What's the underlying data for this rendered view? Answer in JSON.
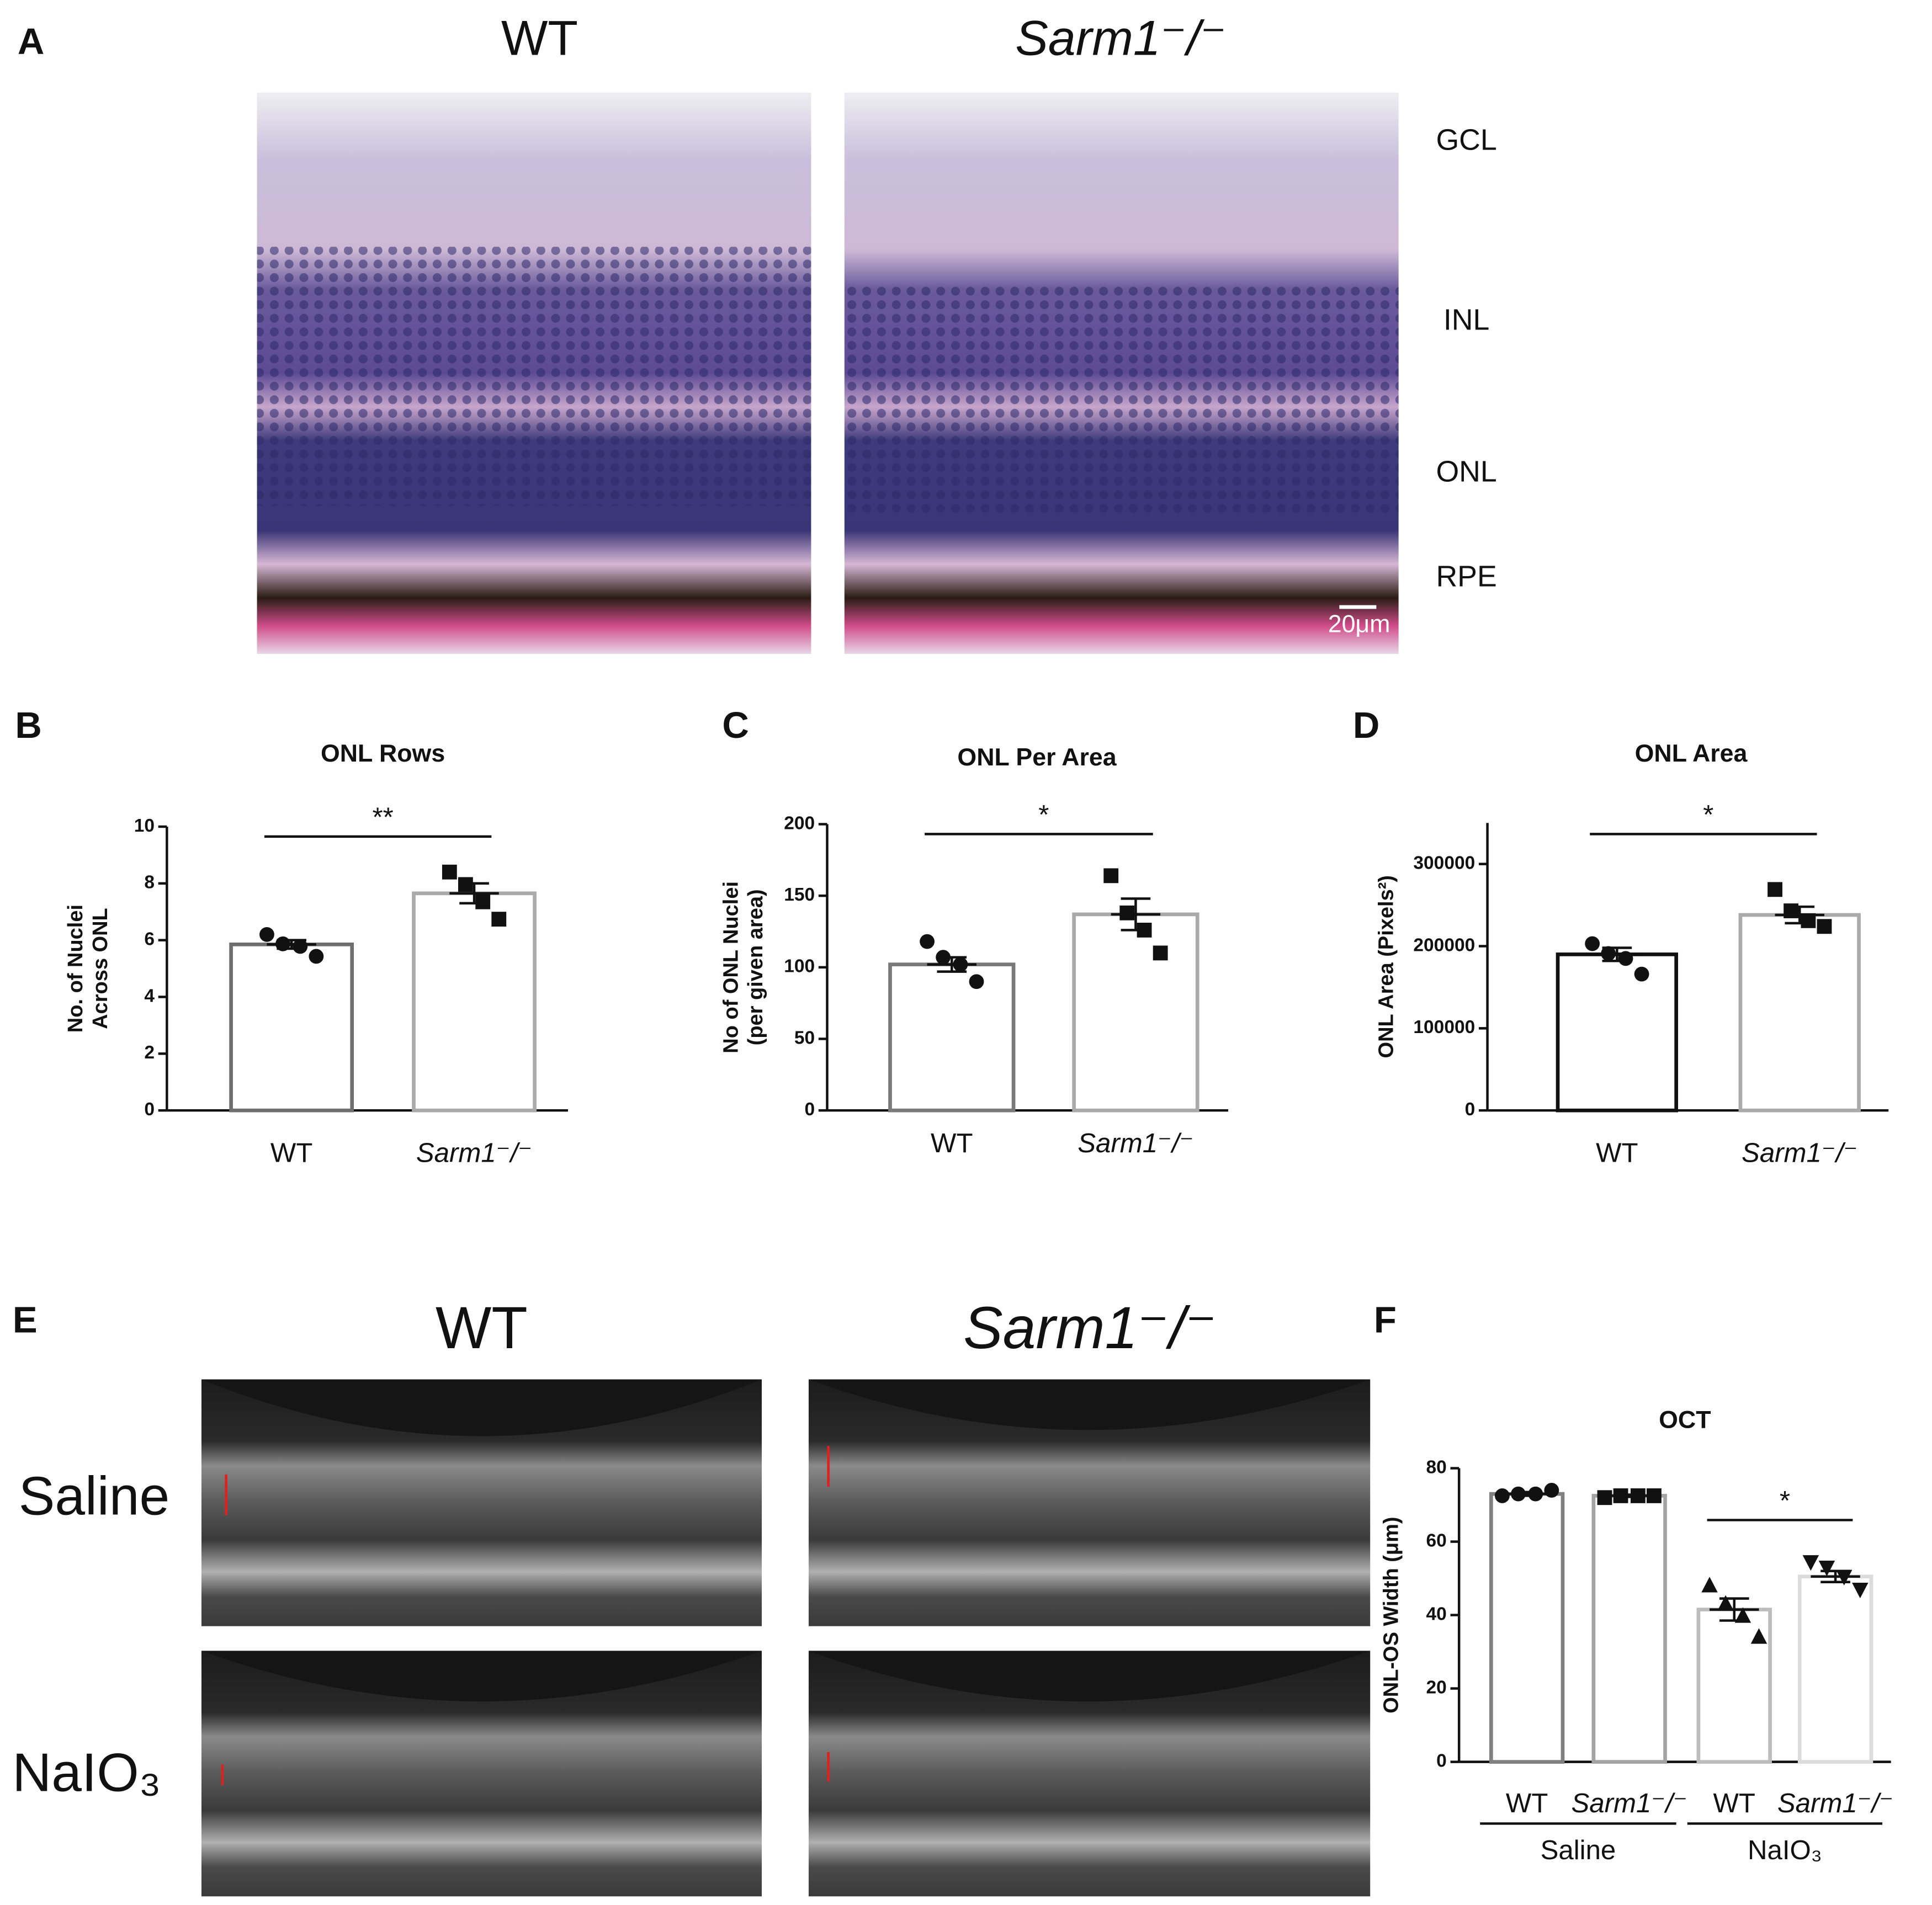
{
  "figure": {
    "panels": [
      "A",
      "B",
      "C",
      "D",
      "E",
      "F"
    ],
    "histology": {
      "columns": [
        "WT",
        "Sarm1⁻/⁻"
      ],
      "layers": [
        "GCL",
        "INL",
        "ONL",
        "RPE"
      ],
      "scale_bar": "20μm"
    },
    "oct": {
      "columns": [
        "WT",
        "Sarm1⁻/⁻"
      ],
      "rows": [
        "Saline",
        "NaIO₃"
      ]
    }
  },
  "chart_data": [
    {
      "type": "bar",
      "title": "ONL Rows",
      "ylabel": [
        "No. of Nuclei",
        "Across ONL"
      ],
      "categories": [
        "WT",
        "Sarm1⁻/⁻"
      ],
      "values": [
        5.85,
        7.65
      ],
      "errors": [
        0.15,
        0.35
      ],
      "points": [
        [
          6.2,
          5.87,
          5.78,
          5.43
        ],
        [
          8.4,
          7.96,
          7.35,
          6.74
        ]
      ],
      "colors": [
        "#6f6f6f",
        "#aaaaaa"
      ],
      "markers": [
        "circle",
        "square"
      ],
      "ylim": [
        0,
        10
      ],
      "yticks": [
        0,
        2,
        4,
        6,
        8,
        10
      ],
      "significance": "**"
    },
    {
      "type": "bar",
      "title": "ONL Per Area",
      "ylabel": [
        "No of ONL Nuclei",
        "(per given area)"
      ],
      "categories": [
        "WT",
        "Sarm1⁻/⁻"
      ],
      "values": [
        102,
        137
      ],
      "errors": [
        5,
        11
      ],
      "points": [
        [
          118,
          107,
          102,
          90
        ],
        [
          164,
          138,
          126,
          110
        ]
      ],
      "colors": [
        "#7a7a7a",
        "#aaaaaa"
      ],
      "markers": [
        "circle",
        "square"
      ],
      "ylim": [
        0,
        200
      ],
      "yticks": [
        0,
        50,
        100,
        150,
        200
      ],
      "significance": "*"
    },
    {
      "type": "bar",
      "title": "ONL Area",
      "ylabel": [
        "ONL Area (Pixels²)"
      ],
      "categories": [
        "WT",
        "Sarm1⁻/⁻"
      ],
      "values": [
        190000,
        238000
      ],
      "errors": [
        8000,
        10000
      ],
      "points": [
        [
          203000,
          191000,
          185000,
          166000
        ],
        [
          269000,
          243000,
          231000,
          224000
        ]
      ],
      "colors": [
        "#111111",
        "#aaaaaa"
      ],
      "markers": [
        "circle",
        "square"
      ],
      "ylim": [
        0,
        350000
      ],
      "yticks": [
        0,
        100000,
        200000,
        300000
      ],
      "significance": "*"
    },
    {
      "type": "bar",
      "title": "OCT",
      "ylabel": [
        "ONL-OS Width (μm)"
      ],
      "categories": [
        "WT",
        "Sarm1⁻/⁻",
        "WT",
        "Sarm1⁻/⁻"
      ],
      "groups": [
        "Saline",
        "NaIO₃"
      ],
      "values": [
        73,
        72.5,
        41.5,
        50.5
      ],
      "errors": [
        0.5,
        0.3,
        3,
        1.5
      ],
      "points": [
        [
          72.5,
          73,
          73,
          74
        ],
        [
          72,
          72.5,
          72.5,
          72.5
        ],
        [
          48,
          43,
          39.7,
          34
        ],
        [
          54.5,
          53,
          50.5,
          47
        ]
      ],
      "colors": [
        "#808080",
        "#a3a3a3",
        "#bdbdbd",
        "#dcdcdc"
      ],
      "markers": [
        "circle",
        "square",
        "triangle",
        "triangle-down"
      ],
      "ylim": [
        0,
        80
      ],
      "yticks": [
        0,
        20,
        40,
        60,
        80
      ],
      "significance": "*"
    }
  ]
}
